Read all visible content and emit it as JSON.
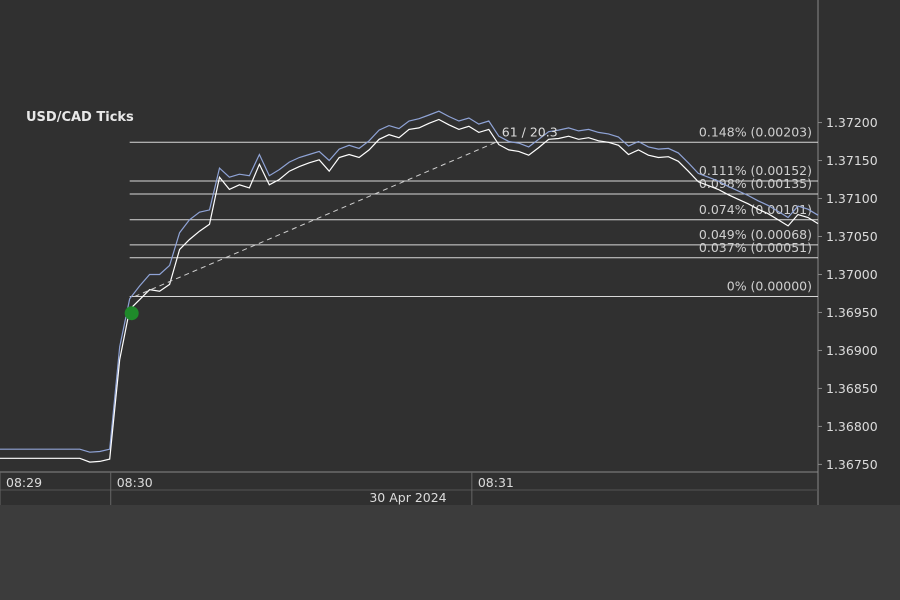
{
  "chart_data": {
    "type": "line",
    "title": "USD/CAD  Ticks",
    "date_label": "30 Apr 2024",
    "xlim": [
      0,
      82
    ],
    "xticks": [
      {
        "value": 0,
        "label": "08:29"
      },
      {
        "value": 11.1,
        "label": "08:30"
      },
      {
        "value": 47.3,
        "label": "08:31"
      }
    ],
    "ylim": [
      1.3674,
      1.3736
    ],
    "yticks": [
      {
        "value": 1.3675,
        "label": "1.36750"
      },
      {
        "value": 1.368,
        "label": "1.36800"
      },
      {
        "value": 1.3685,
        "label": "1.36850"
      },
      {
        "value": 1.369,
        "label": "1.36900"
      },
      {
        "value": 1.3695,
        "label": "1.36950"
      },
      {
        "value": 1.37,
        "label": "1.37000"
      },
      {
        "value": 1.3705,
        "label": "1.37050"
      },
      {
        "value": 1.371,
        "label": "1.37100"
      },
      {
        "value": 1.3715,
        "label": "1.37150"
      },
      {
        "value": 1.372,
        "label": "1.37200"
      }
    ],
    "series": [
      {
        "color": "#8fa3d6",
        "values": [
          1.3677,
          1.3677,
          1.3677,
          1.3677,
          1.3677,
          1.3677,
          1.3677,
          1.3677,
          1.3677,
          1.36766,
          1.36767,
          1.3677,
          1.36905,
          1.36968,
          1.36985,
          1.37,
          1.37,
          1.37012,
          1.37055,
          1.37072,
          1.37082,
          1.37085,
          1.3714,
          1.37128,
          1.37132,
          1.3713,
          1.37158,
          1.3713,
          1.37138,
          1.37148,
          1.37154,
          1.37158,
          1.37162,
          1.3715,
          1.37165,
          1.3717,
          1.37166,
          1.37176,
          1.3719,
          1.37196,
          1.37192,
          1.37202,
          1.37205,
          1.3721,
          1.37215,
          1.37208,
          1.37202,
          1.37206,
          1.37198,
          1.37202,
          1.37182,
          1.37175,
          1.37173,
          1.37168,
          1.37178,
          1.37188,
          1.3719,
          1.37193,
          1.37189,
          1.37191,
          1.37187,
          1.37185,
          1.37181,
          1.37169,
          1.37175,
          1.37168,
          1.37165,
          1.37166,
          1.3716,
          1.37147,
          1.37133,
          1.37128,
          1.37123,
          1.37116,
          1.3711,
          1.37104,
          1.37097,
          1.37091,
          1.37083,
          1.37075,
          1.3709,
          1.37086,
          1.37078
        ]
      },
      {
        "color": "#ffffff",
        "values": [
          1.36758,
          1.36758,
          1.36758,
          1.36758,
          1.36758,
          1.36758,
          1.36758,
          1.36758,
          1.36758,
          1.36753,
          1.36754,
          1.36757,
          1.36888,
          1.36954,
          1.36967,
          1.3698,
          1.36978,
          1.36987,
          1.37033,
          1.37046,
          1.37057,
          1.37066,
          1.37128,
          1.37112,
          1.37118,
          1.37114,
          1.37145,
          1.37118,
          1.37125,
          1.37136,
          1.37142,
          1.37147,
          1.37151,
          1.37136,
          1.37154,
          1.37158,
          1.37154,
          1.37164,
          1.37178,
          1.37184,
          1.3718,
          1.37191,
          1.37193,
          1.37199,
          1.37204,
          1.37197,
          1.37191,
          1.37195,
          1.37187,
          1.37191,
          1.37171,
          1.37164,
          1.37162,
          1.37157,
          1.37167,
          1.37178,
          1.37179,
          1.37182,
          1.37178,
          1.3718,
          1.37176,
          1.37174,
          1.3717,
          1.37158,
          1.37164,
          1.37157,
          1.37154,
          1.37155,
          1.37149,
          1.37136,
          1.37122,
          1.37117,
          1.37112,
          1.37105,
          1.37099,
          1.37093,
          1.37086,
          1.3708,
          1.37072,
          1.37064,
          1.37079,
          1.37075,
          1.37067
        ]
      }
    ],
    "fib_start_x": 13,
    "fib_levels": [
      {
        "value": 1.37174,
        "label": "0.148% (0.00203)"
      },
      {
        "value": 1.37123,
        "label": "0.111% (0.00152)"
      },
      {
        "value": 1.37106,
        "label": "0.098% (0.00135)"
      },
      {
        "value": 1.37072,
        "label": "0.074% (0.00101)"
      },
      {
        "value": 1.37039,
        "label": "0.049% (0.00068)"
      },
      {
        "value": 1.37022,
        "label": "0.037% (0.00051)"
      },
      {
        "value": 1.36971,
        "label": "0% (0.00000)"
      }
    ],
    "trendline": {
      "x": [
        13.5,
        49.7
      ],
      "values": [
        1.36971,
        1.37174
      ],
      "label": "61 / 20.3"
    },
    "marker": {
      "x": 13.2,
      "value": 1.36949,
      "color": "#1f8a2a"
    }
  }
}
